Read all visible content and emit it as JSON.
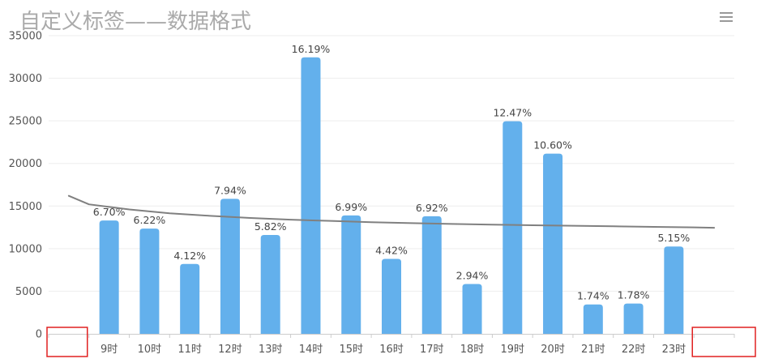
{
  "title": "自定义标签——数据格式",
  "menu": {
    "icon": "hamburger-menu-icon"
  },
  "colors": {
    "bar": "#63b0ec",
    "trend": "#808080",
    "grid": "#eeeeee",
    "highlight_box": "#e02020"
  },
  "chart_data": {
    "type": "bar",
    "title": "自定义标签——数据格式",
    "xlabel": "",
    "ylabel": "",
    "ylim": [
      0,
      35000
    ],
    "yticks": [
      0,
      5000,
      10000,
      15000,
      20000,
      25000,
      30000,
      35000
    ],
    "grid": true,
    "legend": "none",
    "categories": [
      "",
      "9时",
      "10时",
      "11时",
      "12时",
      "13时",
      "14时",
      "15时",
      "16时",
      "17时",
      "18时",
      "19时",
      "20时",
      "21时",
      "22时",
      "23时",
      ""
    ],
    "values": [
      null,
      13300,
      12350,
      8200,
      15850,
      11600,
      32450,
      13900,
      8800,
      13800,
      5850,
      24950,
      21150,
      3450,
      3550,
      10250,
      null
    ],
    "data_labels": [
      "",
      "6.70%",
      "6.22%",
      "4.12%",
      "7.94%",
      "5.82%",
      "16.19%",
      "6.99%",
      "4.42%",
      "6.92%",
      "2.94%",
      "12.47%",
      "10.60%",
      "1.74%",
      "1.78%",
      "5.15%",
      ""
    ],
    "trend": {
      "type": "line",
      "x": [
        0.5,
        1,
        2,
        3,
        4,
        5,
        6,
        7,
        8,
        9,
        10,
        11,
        12,
        13,
        14,
        15,
        16,
        16.5
      ],
      "values": [
        16200,
        15200,
        14600,
        14150,
        13850,
        13600,
        13400,
        13250,
        13100,
        13000,
        12900,
        12820,
        12750,
        12680,
        12620,
        12560,
        12500,
        12450
      ]
    }
  }
}
